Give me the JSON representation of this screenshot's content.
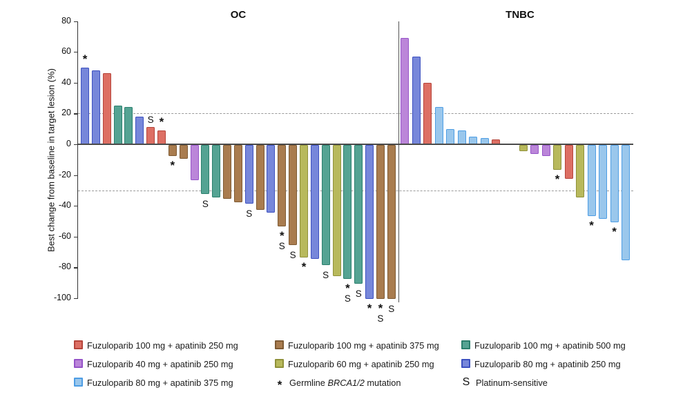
{
  "chart_data": {
    "type": "bar",
    "variant": "waterfall",
    "ylabel": "Best change from baseline in target lesion (%)",
    "ylim": [
      -100,
      80
    ],
    "yticks": [
      80,
      60,
      40,
      20,
      0,
      -20,
      -40,
      -60,
      -80,
      -100
    ],
    "reference_lines_pct": [
      20,
      -30
    ],
    "grid": "dashed-reference-only",
    "legend_position": "bottom",
    "marker_meanings": {
      "*": "Germline BRCA1/2 mutation",
      "S": "Platinum-sensitive"
    },
    "groups": [
      {
        "name": "OC",
        "bars": [
          {
            "value": 50,
            "color": "indigo",
            "marker": "*"
          },
          {
            "value": 48,
            "color": "indigo"
          },
          {
            "value": 46,
            "color": "red"
          },
          {
            "value": 25,
            "color": "teal"
          },
          {
            "value": 24,
            "color": "teal"
          },
          {
            "value": 18,
            "color": "indigo"
          },
          {
            "value": 11,
            "color": "red",
            "marker": "S"
          },
          {
            "value": 9,
            "color": "red",
            "marker": "*"
          },
          {
            "value": -7,
            "color": "brown",
            "marker": "*"
          },
          {
            "value": -9,
            "color": "brown"
          },
          {
            "value": -23,
            "color": "purple"
          },
          {
            "value": -32,
            "color": "teal",
            "marker": "S"
          },
          {
            "value": -34,
            "color": "teal"
          },
          {
            "value": -35,
            "color": "brown"
          },
          {
            "value": -37,
            "color": "brown"
          },
          {
            "value": -38,
            "color": "indigo",
            "marker": "S"
          },
          {
            "value": -42,
            "color": "brown"
          },
          {
            "value": -44,
            "color": "indigo"
          },
          {
            "value": -53,
            "color": "brown",
            "marker": "*S"
          },
          {
            "value": -65,
            "color": "brown",
            "marker": "S"
          },
          {
            "value": -73,
            "color": "olive",
            "marker": "*"
          },
          {
            "value": -74,
            "color": "indigo"
          },
          {
            "value": -78,
            "color": "teal",
            "marker": "S"
          },
          {
            "value": -85,
            "color": "olive"
          },
          {
            "value": -87,
            "color": "teal",
            "marker": "*S"
          },
          {
            "value": -90,
            "color": "teal",
            "marker": "S"
          },
          {
            "value": -100,
            "color": "indigo",
            "marker": "*"
          },
          {
            "value": -100,
            "color": "brown",
            "marker": "*S"
          },
          {
            "value": -100,
            "color": "brown",
            "marker": "S"
          }
        ]
      },
      {
        "name": "TNBC",
        "bars": [
          {
            "value": 69,
            "color": "purple"
          },
          {
            "value": 57,
            "color": "indigo"
          },
          {
            "value": 40,
            "color": "red"
          },
          {
            "value": 24,
            "color": "skyblue"
          },
          {
            "value": 10,
            "color": "skyblue"
          },
          {
            "value": 9,
            "color": "skyblue"
          },
          {
            "value": 5,
            "color": "skyblue"
          },
          {
            "value": 4,
            "color": "skyblue"
          },
          {
            "value": 3,
            "color": "red"
          },
          {
            "value": -4,
            "color": "olive",
            "gap_before": true
          },
          {
            "value": -6,
            "color": "purple"
          },
          {
            "value": -7,
            "color": "purple"
          },
          {
            "value": -16,
            "color": "olive",
            "marker": "*"
          },
          {
            "value": -22,
            "color": "red"
          },
          {
            "value": -34,
            "color": "olive"
          },
          {
            "value": -46,
            "color": "skyblue",
            "marker": "*"
          },
          {
            "value": -48,
            "color": "skyblue"
          },
          {
            "value": -50,
            "color": "skyblue",
            "marker": "*"
          },
          {
            "value": -75,
            "color": "skyblue"
          }
        ]
      }
    ]
  },
  "palette": {
    "red": {
      "fill": "#DD6F64",
      "border": "#B5443A",
      "label": "Fuzuloparib 100 mg + apatinib 250 mg"
    },
    "purple": {
      "fill": "#BB86D9",
      "border": "#9553C8",
      "label": "Fuzuloparib 40 mg + apatinib 250 mg"
    },
    "skyblue": {
      "fill": "#9AC7EC",
      "border": "#4D9DE4",
      "label": "Fuzuloparib 80 mg + apatinib 375 mg"
    },
    "brown": {
      "fill": "#A97C4F",
      "border": "#7E5A33",
      "label": "Fuzuloparib 100 mg + apatinib 375 mg"
    },
    "olive": {
      "fill": "#B8B95C",
      "border": "#8F9139",
      "label": "Fuzuloparib 60 mg + apatinib 250 mg"
    },
    "teal": {
      "fill": "#55A393",
      "border": "#2B7F6D",
      "label": "Fuzuloparib 100 mg + apatinib 500 mg"
    },
    "indigo": {
      "fill": "#7787DA",
      "border": "#3C50C0",
      "label": "Fuzuloparib 80 mg + apatinib 250 mg"
    }
  },
  "legend": {
    "columns": [
      {
        "items": [
          {
            "type": "swatch",
            "color": "red"
          },
          {
            "type": "swatch",
            "color": "purple"
          },
          {
            "type": "swatch",
            "color": "skyblue"
          }
        ]
      },
      {
        "items": [
          {
            "type": "swatch",
            "color": "brown"
          },
          {
            "type": "swatch",
            "color": "olive"
          },
          {
            "type": "symbol",
            "symbol": "*",
            "pre": "Germline ",
            "em": "BRCA1/2",
            "post": " mutation"
          }
        ]
      },
      {
        "items": [
          {
            "type": "swatch",
            "color": "teal"
          },
          {
            "type": "swatch",
            "color": "indigo"
          },
          {
            "type": "symbol",
            "symbol": "S",
            "pre": "",
            "em": "",
            "post": "Platinum-sensitive"
          }
        ]
      }
    ]
  }
}
